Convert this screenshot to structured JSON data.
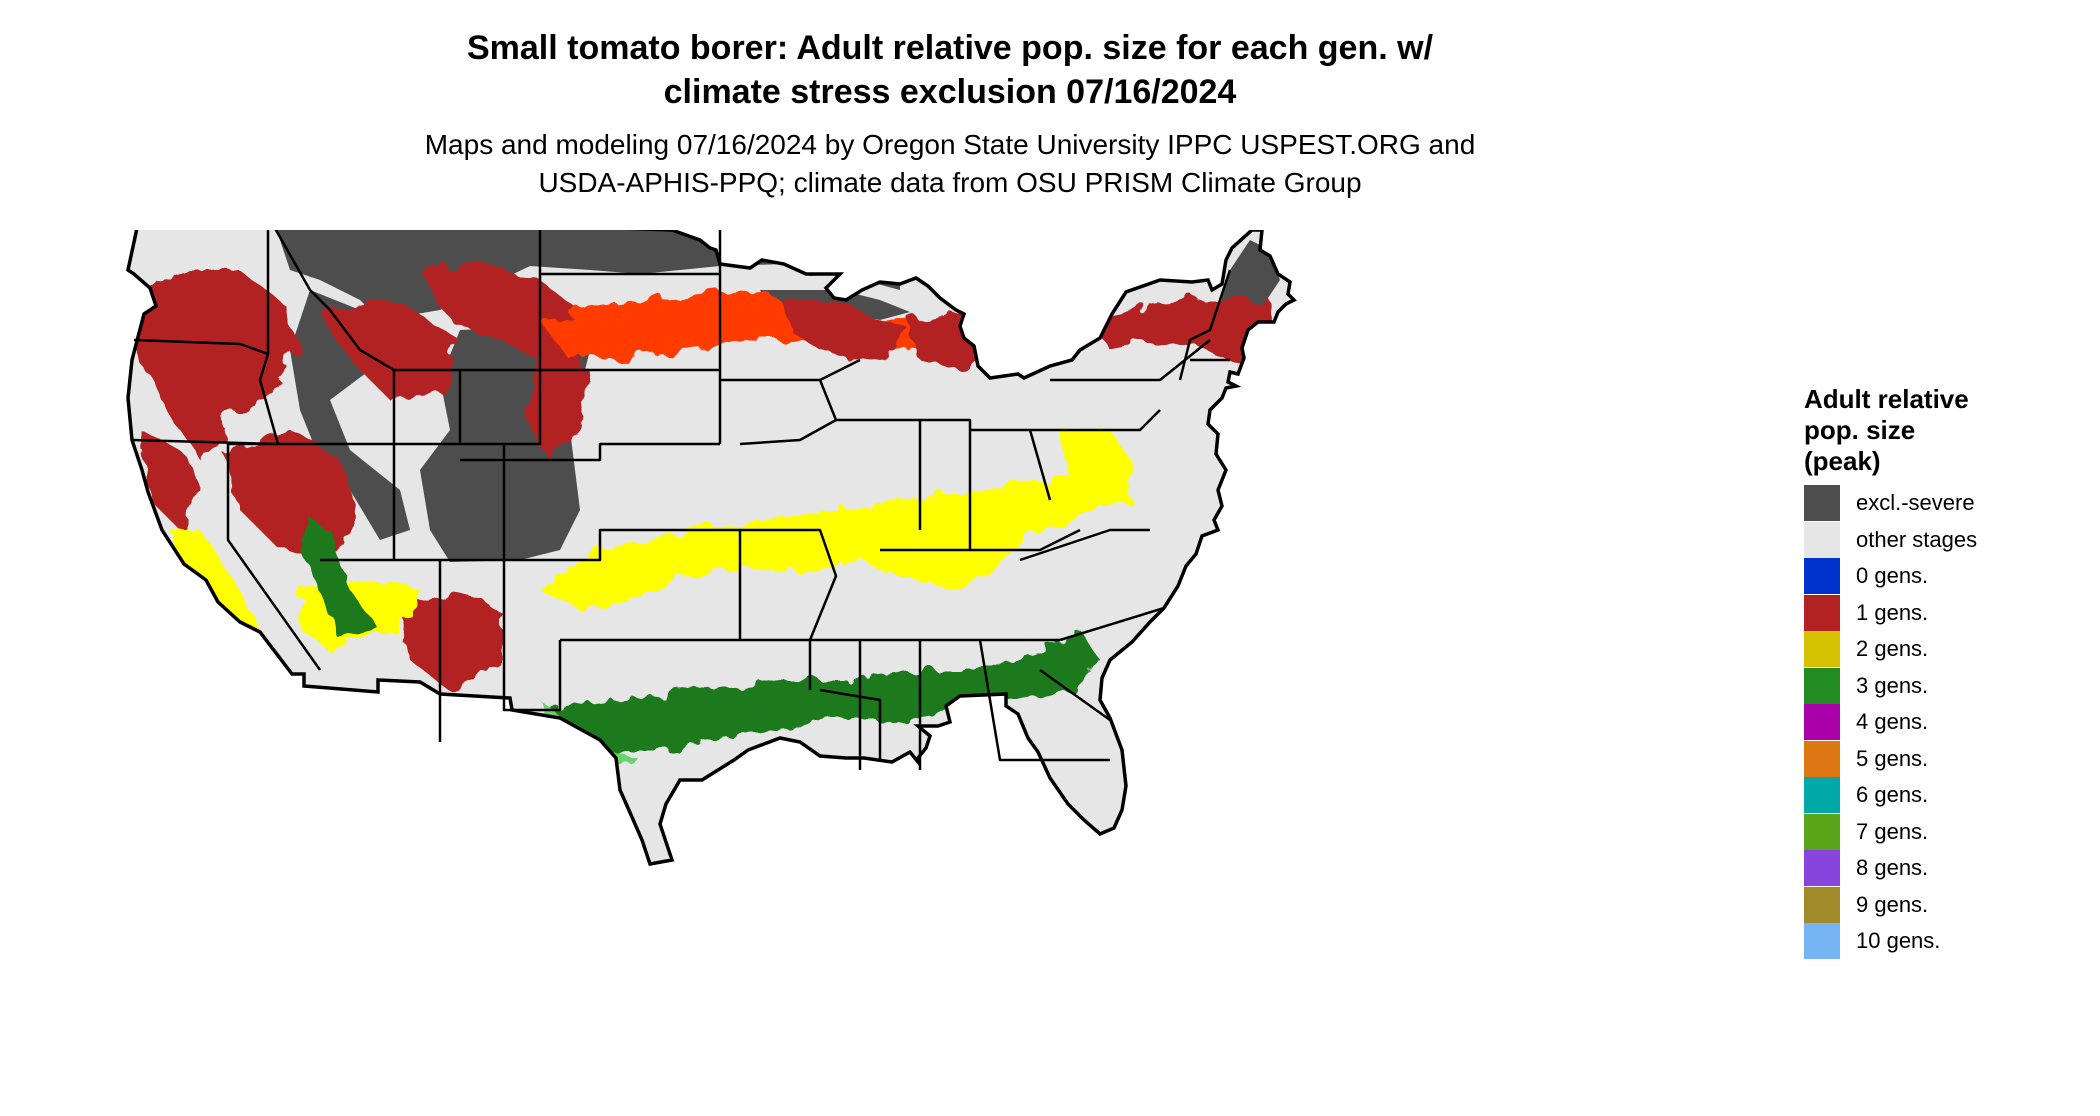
{
  "title": {
    "line1": "Small tomato borer: Adult relative pop. size for each gen. w/",
    "line2": "climate stress exclusion 07/16/2024"
  },
  "subtitle": {
    "line1": "Maps and modeling 07/16/2024 by Oregon State University IPPC USPEST.ORG and",
    "line2": "USDA-APHIS-PPQ; climate data from OSU PRISM Climate Group"
  },
  "legend": {
    "title_lines": [
      "Adult relative",
      "pop. size",
      "(peak)"
    ],
    "items": [
      {
        "label": "excl.-severe",
        "color": "#4d4d4d"
      },
      {
        "label": "other stages",
        "color": "#e6e6e6"
      },
      {
        "label": "0 gens.",
        "color": "#0033cc"
      },
      {
        "label": "1 gens.",
        "color": "#b22222"
      },
      {
        "label": "2 gens.",
        "color": "#d4c200"
      },
      {
        "label": "3 gens.",
        "color": "#228b22"
      },
      {
        "label": "4 gens.",
        "color": "#aa00aa"
      },
      {
        "label": "5 gens.",
        "color": "#dd7711"
      },
      {
        "label": "6 gens.",
        "color": "#00a8a8"
      },
      {
        "label": "7 gens.",
        "color": "#5aa51a"
      },
      {
        "label": "8 gens.",
        "color": "#8844dd"
      },
      {
        "label": "9 gens.",
        "color": "#a08a2a"
      },
      {
        "label": "10 gens.",
        "color": "#77b4f4"
      }
    ]
  },
  "map": {
    "region": "contiguous-united-states",
    "colors": {
      "land": "#e6e6e6",
      "excluded": "#4d4d4d",
      "one_gen": "#b22222",
      "one_gen_edge": "#ff3a00",
      "two_gen": "#ffff00",
      "three_gen": "#1a7a1a",
      "three_gen_edge": "#6bd26b",
      "four_gen": "#cc00cc",
      "five_gen": "#dd7711",
      "border": "#000000"
    }
  }
}
